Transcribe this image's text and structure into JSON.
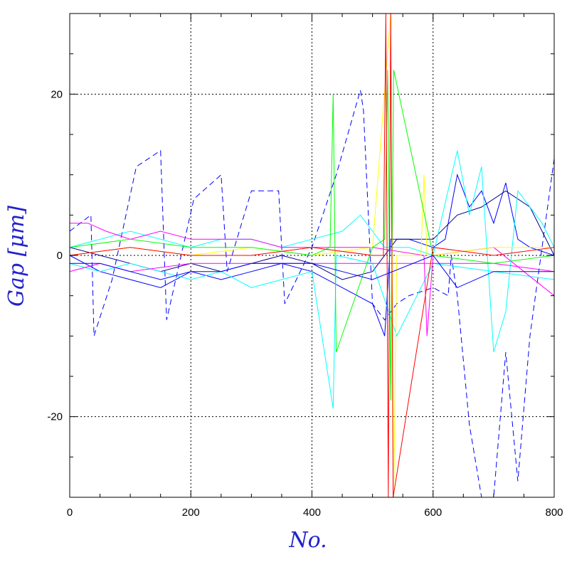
{
  "chart_data": {
    "type": "line",
    "title": "",
    "xlabel": "No.",
    "ylabel": "Gap [μm]",
    "xlim": [
      0,
      800
    ],
    "ylim": [
      -30,
      30
    ],
    "grid": true,
    "legend": "none",
    "x_ticks": [
      0,
      200,
      400,
      600,
      800
    ],
    "x_tick_labels": [
      "0",
      "200",
      "400",
      "600",
      "800"
    ],
    "y_ticks": [
      -20,
      0,
      20
    ],
    "y_tick_labels": [
      "-20",
      "0",
      "20"
    ],
    "label_color": "#2222cc",
    "series_colors": [
      "#0000ff",
      "#00ffff",
      "#ff00ff",
      "#ffff00",
      "#00ff00",
      "#ff0000",
      "#00008b"
    ],
    "series": [
      {
        "color": "#0000ff",
        "dashed": true,
        "x": [
          0,
          35,
          40,
          70,
          110,
          150,
          160,
          205,
          250,
          260,
          300,
          345,
          355,
          400,
          440,
          480,
          485,
          500,
          520,
          540,
          560,
          600,
          625,
          630,
          640,
          660,
          680,
          700,
          720,
          740,
          760,
          800
        ],
        "y": [
          3,
          5,
          -10,
          -3,
          11,
          13,
          -8,
          7,
          10,
          -2,
          8,
          8,
          -6,
          1,
          10,
          20.5,
          18,
          -6,
          -8,
          -6,
          -5,
          -4,
          -5,
          0,
          -5,
          -21,
          -30,
          -30,
          -12,
          -28,
          -10,
          12
        ]
      },
      {
        "color": "#0000ff",
        "dashed": false,
        "x": [
          0,
          50,
          100,
          150,
          200,
          250,
          300,
          350,
          400,
          450,
          500,
          520,
          530,
          560,
          600,
          620,
          640,
          660,
          680,
          700,
          720,
          740,
          760,
          800
        ],
        "y": [
          0,
          -2,
          -3,
          -4,
          -2,
          -3,
          -2,
          -1,
          -2,
          -4,
          -6,
          -10,
          2,
          2,
          1,
          2,
          10,
          6,
          8,
          4,
          9,
          2,
          1,
          0
        ]
      },
      {
        "color": "#00008b",
        "dashed": false,
        "x": [
          0,
          50,
          100,
          150,
          200,
          250,
          300,
          350,
          400,
          450,
          500,
          540,
          600,
          640,
          680,
          720,
          760,
          800
        ],
        "y": [
          1,
          0,
          -1,
          -2,
          -1,
          -2,
          -1,
          0,
          -1,
          -3,
          -2,
          2,
          2,
          5,
          6,
          8,
          6,
          0
        ]
      },
      {
        "color": "#00ffff",
        "dashed": false,
        "x": [
          0,
          50,
          100,
          150,
          200,
          250,
          300,
          350,
          400,
          450,
          480,
          500,
          520,
          560,
          600,
          640,
          660,
          680,
          700,
          720,
          740,
          780,
          800
        ],
        "y": [
          1,
          2,
          3,
          2,
          1,
          2,
          2,
          1,
          2,
          3,
          5,
          3,
          1,
          1,
          0,
          13,
          5,
          11,
          -12,
          -7,
          8,
          4,
          1
        ]
      },
      {
        "color": "#00ffff",
        "dashed": false,
        "x": [
          0,
          50,
          100,
          150,
          200,
          250,
          300,
          350,
          400,
          435,
          440,
          500,
          540,
          600,
          700,
          800
        ],
        "y": [
          -1,
          -2,
          -1,
          -2,
          -3,
          -2,
          -4,
          -3,
          -2,
          -19,
          0,
          -1,
          -10,
          -1,
          -2,
          -3
        ]
      },
      {
        "color": "#ff00ff",
        "dashed": false,
        "x": [
          0,
          30,
          60,
          100,
          150,
          200,
          300,
          350,
          400,
          500,
          585,
          590,
          600,
          700,
          750,
          800
        ],
        "y": [
          4,
          4,
          3,
          2,
          3,
          2,
          2,
          1,
          1,
          1,
          0,
          -10,
          0,
          1,
          -2,
          -5
        ]
      },
      {
        "color": "#ff00ff",
        "dashed": false,
        "x": [
          0,
          50,
          100,
          200,
          300,
          400,
          500,
          600,
          700,
          800
        ],
        "y": [
          -2,
          -1,
          -2,
          -1,
          -1,
          -1,
          -1,
          -1,
          -1,
          -2
        ]
      },
      {
        "color": "#ffff00",
        "dashed": false,
        "x": [
          0,
          100,
          200,
          300,
          400,
          500,
          530,
          535,
          540,
          580,
          585,
          590,
          600,
          700,
          800
        ],
        "y": [
          0,
          1,
          0,
          1,
          0,
          1,
          30,
          -30,
          0,
          0,
          10,
          0,
          0,
          1,
          1
        ]
      },
      {
        "color": "#00ff00",
        "dashed": false,
        "x": [
          0,
          100,
          200,
          300,
          400,
          430,
          435,
          440,
          500,
          520,
          525,
          530,
          535,
          600,
          700,
          800
        ],
        "y": [
          1,
          2,
          1,
          1,
          0,
          1,
          20,
          -12,
          1,
          2,
          23,
          -18,
          23,
          0,
          -1,
          0
        ]
      },
      {
        "color": "#ff0000",
        "dashed": false,
        "x": [
          0,
          100,
          200,
          300,
          400,
          500,
          518,
          522,
          526,
          530,
          534,
          600,
          700,
          800
        ],
        "y": [
          0,
          1,
          0,
          0,
          1,
          0,
          0,
          30,
          -30,
          30,
          -30,
          1,
          0,
          1
        ]
      },
      {
        "color": "#0000ff",
        "dashed": false,
        "x": [
          0,
          50,
          100,
          150,
          200,
          250,
          300,
          350,
          400,
          450,
          500,
          600,
          640,
          700,
          800
        ],
        "y": [
          -1,
          -1,
          -2,
          -3,
          -2,
          -2,
          -1,
          -1,
          -1,
          -2,
          -3,
          0,
          -4,
          -2,
          -2
        ]
      }
    ]
  }
}
